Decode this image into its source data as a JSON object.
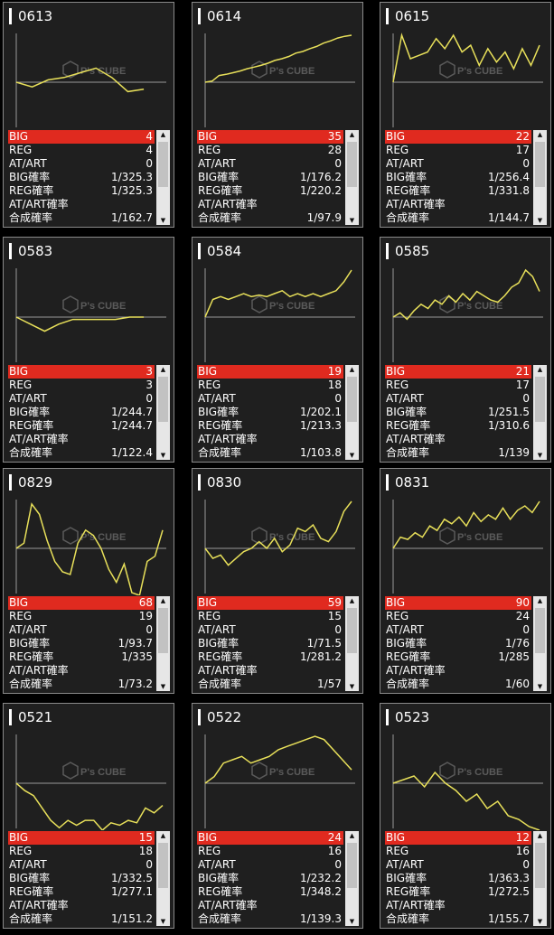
{
  "labels": {
    "big": "BIG",
    "reg": "REG",
    "at": "AT/ART",
    "big_rate": "BIG確率",
    "reg_rate": "REG確率",
    "at_rate": "AT/ART確率",
    "combined": "合成確率"
  },
  "watermark": "P's CUBE",
  "colors": {
    "line": "#e8e05a",
    "big_row": "#e02a1f",
    "panel": "#1f1f1f",
    "baseline": "#9a9a9a"
  },
  "cards": [
    {
      "title": "0613",
      "big": "4",
      "reg": "4",
      "at": "0",
      "big_rate": "1/325.3",
      "reg_rate": "1/325.3",
      "at_rate": "",
      "combined": "1/162.7",
      "trend": [
        0,
        -2,
        1,
        2,
        4,
        6,
        2,
        -4,
        -3
      ]
    },
    {
      "title": "0614",
      "big": "35",
      "reg": "28",
      "at": "0",
      "big_rate": "1/176.2",
      "reg_rate": "1/220.2",
      "at_rate": "",
      "combined": "1/97.9",
      "trend": [
        0,
        2,
        12,
        14,
        17,
        20,
        24,
        27,
        30,
        34,
        39,
        42,
        46,
        52,
        55,
        60,
        64,
        70,
        74,
        79,
        82,
        84
      ]
    },
    {
      "title": "0615",
      "big": "22",
      "reg": "17",
      "at": "0",
      "big_rate": "1/256.4",
      "reg_rate": "1/331.8",
      "at_rate": "",
      "combined": "1/144.7",
      "trend": [
        0,
        28,
        14,
        16,
        18,
        26,
        20,
        28,
        18,
        22,
        10,
        20,
        12,
        18,
        8,
        20,
        10,
        22
      ]
    },
    {
      "title": "0583",
      "big": "3",
      "reg": "3",
      "at": "0",
      "big_rate": "1/244.7",
      "reg_rate": "1/244.7",
      "at_rate": "",
      "combined": "1/122.4",
      "trend": [
        0,
        -3,
        -6,
        -3,
        -1,
        -1,
        -1,
        -1,
        0,
        0
      ]
    },
    {
      "title": "0584",
      "big": "19",
      "reg": "18",
      "at": "0",
      "big_rate": "1/202.1",
      "reg_rate": "1/213.3",
      "at_rate": "",
      "combined": "1/103.8",
      "trend": [
        0,
        12,
        14,
        12,
        14,
        16,
        14,
        15,
        14,
        16,
        18,
        14,
        16,
        14,
        16,
        14,
        16,
        18,
        24,
        32
      ]
    },
    {
      "title": "0585",
      "big": "21",
      "reg": "17",
      "at": "0",
      "big_rate": "1/251.5",
      "reg_rate": "1/310.6",
      "at_rate": "",
      "combined": "1/139",
      "trend": [
        0,
        4,
        -2,
        6,
        12,
        8,
        16,
        12,
        20,
        14,
        22,
        16,
        24,
        20,
        16,
        14,
        20,
        28,
        32,
        44,
        38,
        24
      ]
    },
    {
      "title": "0829",
      "big": "68",
      "reg": "19",
      "at": "0",
      "big_rate": "1/93.7",
      "reg_rate": "1/335",
      "at_rate": "",
      "combined": "1/73.2",
      "trend": [
        0,
        4,
        34,
        26,
        6,
        -10,
        -18,
        -20,
        4,
        14,
        10,
        0,
        -16,
        -26,
        -12,
        -34,
        -36,
        -10,
        -6,
        14
      ]
    },
    {
      "title": "0830",
      "big": "59",
      "reg": "15",
      "at": "0",
      "big_rate": "1/71.5",
      "reg_rate": "1/281.2",
      "at_rate": "",
      "combined": "1/57",
      "trend": [
        0,
        -6,
        -4,
        -10,
        -6,
        -2,
        0,
        4,
        0,
        6,
        -2,
        2,
        12,
        10,
        14,
        6,
        4,
        10,
        22,
        28
      ]
    },
    {
      "title": "0831",
      "big": "90",
      "reg": "24",
      "at": "0",
      "big_rate": "1/76",
      "reg_rate": "1/285",
      "at_rate": "",
      "combined": "1/60",
      "trend": [
        0,
        10,
        8,
        14,
        10,
        20,
        16,
        26,
        22,
        28,
        20,
        32,
        24,
        30,
        26,
        36,
        26,
        34,
        38,
        32,
        42
      ]
    },
    {
      "title": "0521",
      "big": "15",
      "reg": "18",
      "at": "0",
      "big_rate": "1/332.5",
      "reg_rate": "1/277.1",
      "at_rate": "",
      "combined": "1/151.2",
      "trend": [
        0,
        -6,
        -10,
        -20,
        -30,
        -36,
        -30,
        -34,
        -30,
        -30,
        -38,
        -32,
        -34,
        -30,
        -32,
        -20,
        -24,
        -18
      ]
    },
    {
      "title": "0522",
      "big": "24",
      "reg": "16",
      "at": "0",
      "big_rate": "1/232.2",
      "reg_rate": "1/348.2",
      "at_rate": "",
      "combined": "1/139.3",
      "trend": [
        0,
        4,
        12,
        14,
        16,
        12,
        14,
        16,
        20,
        22,
        24,
        26,
        28,
        26,
        20,
        14,
        8
      ]
    },
    {
      "title": "0523",
      "big": "12",
      "reg": "16",
      "at": "0",
      "big_rate": "1/363.3",
      "reg_rate": "1/272.5",
      "at_rate": "",
      "combined": "1/155.7",
      "trend": [
        0,
        2,
        4,
        -2,
        6,
        0,
        -4,
        -10,
        -6,
        -14,
        -10,
        -18,
        -20,
        -24,
        -26
      ]
    }
  ]
}
